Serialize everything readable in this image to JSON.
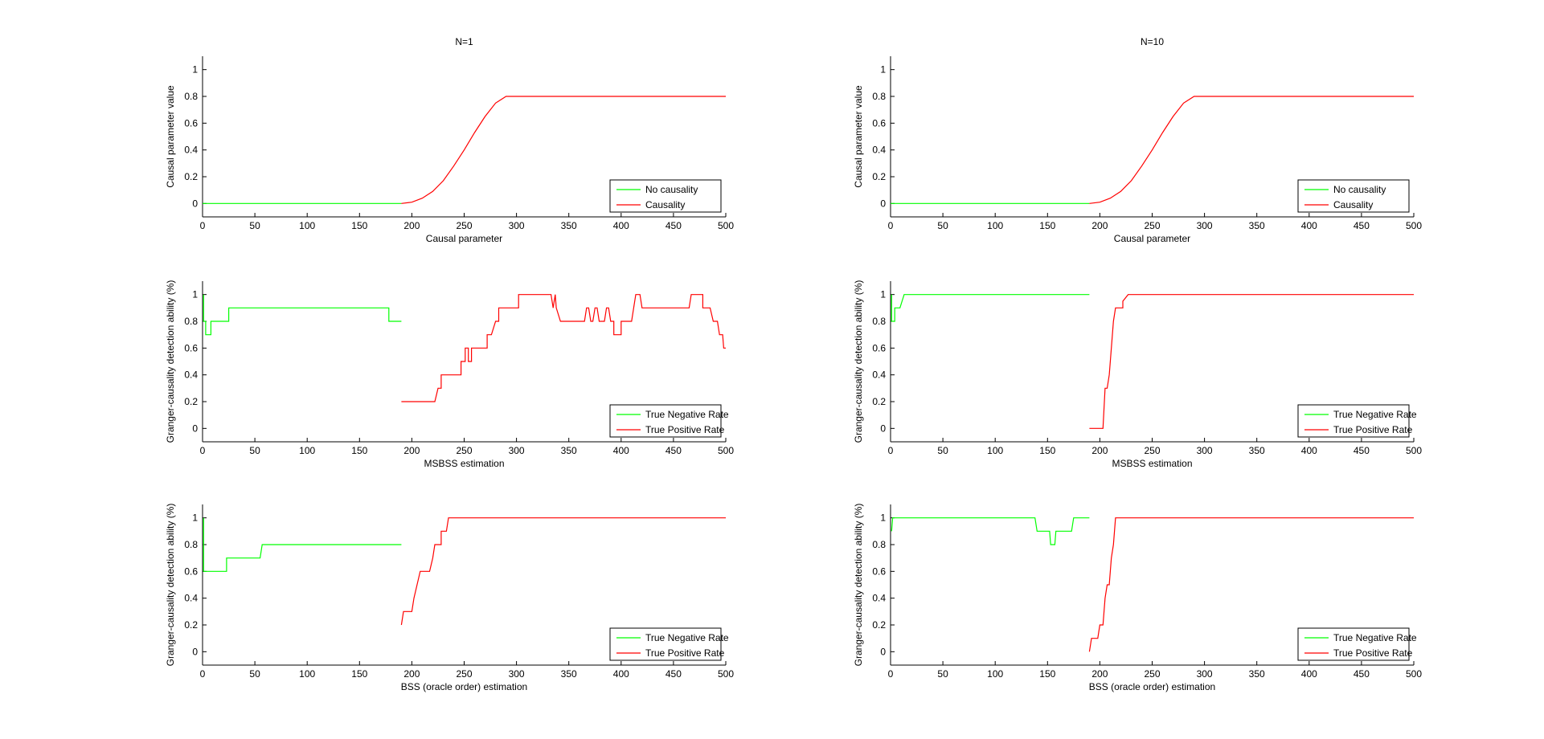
{
  "figure": {
    "colors": {
      "green": "#00ff00",
      "red": "#ff0000",
      "axis": "#000000"
    }
  },
  "chart_data": [
    {
      "type": "line",
      "title": "N=1",
      "xlabel": "Causal parameter",
      "ylabel": "Causal parameter value",
      "xlim": [
        0,
        500
      ],
      "ylim": [
        -0.1,
        1.1
      ],
      "xticks": [
        0,
        50,
        100,
        150,
        200,
        250,
        300,
        350,
        400,
        450,
        500
      ],
      "yticks": [
        0,
        0.2,
        0.4,
        0.6,
        0.8,
        1
      ],
      "legend": "bottom-right",
      "series": [
        {
          "name": "No causality",
          "color": "#00ff00",
          "points": [
            [
              0,
              0
            ],
            [
              190,
              0
            ]
          ]
        },
        {
          "name": "Causality",
          "color": "#ff0000",
          "points": [
            [
              190,
              0
            ],
            [
              200,
              0.01
            ],
            [
              210,
              0.04
            ],
            [
              220,
              0.09
            ],
            [
              230,
              0.17
            ],
            [
              240,
              0.28
            ],
            [
              250,
              0.4
            ],
            [
              260,
              0.53
            ],
            [
              270,
              0.65
            ],
            [
              280,
              0.75
            ],
            [
              290,
              0.8
            ],
            [
              500,
              0.8
            ]
          ]
        }
      ]
    },
    {
      "type": "line",
      "title": "N=10",
      "xlabel": "Causal parameter",
      "ylabel": "Causal parameter value",
      "xlim": [
        0,
        500
      ],
      "ylim": [
        -0.1,
        1.1
      ],
      "xticks": [
        0,
        50,
        100,
        150,
        200,
        250,
        300,
        350,
        400,
        450,
        500
      ],
      "yticks": [
        0,
        0.2,
        0.4,
        0.6,
        0.8,
        1
      ],
      "legend": "bottom-right",
      "series": [
        {
          "name": "No causality",
          "color": "#00ff00",
          "points": [
            [
              0,
              0
            ],
            [
              190,
              0
            ]
          ]
        },
        {
          "name": "Causality",
          "color": "#ff0000",
          "points": [
            [
              190,
              0
            ],
            [
              200,
              0.01
            ],
            [
              210,
              0.04
            ],
            [
              220,
              0.09
            ],
            [
              230,
              0.17
            ],
            [
              240,
              0.28
            ],
            [
              250,
              0.4
            ],
            [
              260,
              0.53
            ],
            [
              270,
              0.65
            ],
            [
              280,
              0.75
            ],
            [
              290,
              0.8
            ],
            [
              500,
              0.8
            ]
          ]
        }
      ]
    },
    {
      "type": "line",
      "title": "",
      "xlabel": "MSBSS estimation",
      "ylabel": "Granger-causality detection ability (%)",
      "xlim": [
        0,
        500
      ],
      "ylim": [
        -0.1,
        1.1
      ],
      "xticks": [
        0,
        50,
        100,
        150,
        200,
        250,
        300,
        350,
        400,
        450,
        500
      ],
      "yticks": [
        0,
        0.2,
        0.4,
        0.6,
        0.8,
        1
      ],
      "legend": "bottom-right",
      "series": [
        {
          "name": "True Negative Rate",
          "color": "#00ff00",
          "points": [
            [
              1,
              1
            ],
            [
              1,
              0.8
            ],
            [
              3,
              0.8
            ],
            [
              3,
              0.7
            ],
            [
              8,
              0.7
            ],
            [
              8,
              0.8
            ],
            [
              25,
              0.8
            ],
            [
              25,
              0.9
            ],
            [
              178,
              0.9
            ],
            [
              178,
              0.8
            ],
            [
              190,
              0.8
            ]
          ]
        },
        {
          "name": "True Positive Rate",
          "color": "#ff0000",
          "points": [
            [
              190,
              0.2
            ],
            [
              222,
              0.2
            ],
            [
              225,
              0.3
            ],
            [
              228,
              0.3
            ],
            [
              228,
              0.4
            ],
            [
              247,
              0.4
            ],
            [
              247,
              0.5
            ],
            [
              251,
              0.5
            ],
            [
              251,
              0.6
            ],
            [
              254,
              0.6
            ],
            [
              254,
              0.5
            ],
            [
              257,
              0.5
            ],
            [
              257,
              0.6
            ],
            [
              272,
              0.6
            ],
            [
              272,
              0.7
            ],
            [
              276,
              0.7
            ],
            [
              280,
              0.8
            ],
            [
              283,
              0.8
            ],
            [
              283,
              0.9
            ],
            [
              302,
              0.9
            ],
            [
              302,
              1
            ],
            [
              333,
              1
            ],
            [
              335,
              0.9
            ],
            [
              337,
              1
            ],
            [
              338,
              0.9
            ],
            [
              342,
              0.8
            ],
            [
              365,
              0.8
            ],
            [
              367,
              0.9
            ],
            [
              369,
              0.9
            ],
            [
              371,
              0.8
            ],
            [
              373,
              0.8
            ],
            [
              375,
              0.9
            ],
            [
              377,
              0.9
            ],
            [
              379,
              0.8
            ],
            [
              384,
              0.8
            ],
            [
              386,
              0.9
            ],
            [
              388,
              0.9
            ],
            [
              390,
              0.8
            ],
            [
              393,
              0.8
            ],
            [
              393,
              0.7
            ],
            [
              400,
              0.7
            ],
            [
              400,
              0.8
            ],
            [
              410,
              0.8
            ],
            [
              412,
              0.9
            ],
            [
              414,
              1
            ],
            [
              418,
              1
            ],
            [
              420,
              0.9
            ],
            [
              465,
              0.9
            ],
            [
              467,
              1
            ],
            [
              478,
              1
            ],
            [
              478,
              0.9
            ],
            [
              485,
              0.9
            ],
            [
              488,
              0.8
            ],
            [
              492,
              0.8
            ],
            [
              494,
              0.7
            ],
            [
              497,
              0.7
            ],
            [
              498,
              0.6
            ],
            [
              500,
              0.6
            ]
          ]
        }
      ]
    },
    {
      "type": "line",
      "title": "",
      "xlabel": "MSBSS estimation",
      "ylabel": "Granger-causality detection ability (%)",
      "xlim": [
        0,
        500
      ],
      "ylim": [
        -0.1,
        1.1
      ],
      "xticks": [
        0,
        50,
        100,
        150,
        200,
        250,
        300,
        350,
        400,
        450,
        500
      ],
      "yticks": [
        0,
        0.2,
        0.4,
        0.6,
        0.8,
        1
      ],
      "legend": "bottom-right",
      "series": [
        {
          "name": "True Negative Rate",
          "color": "#00ff00",
          "points": [
            [
              1,
              1
            ],
            [
              1,
              0.8
            ],
            [
              4,
              0.8
            ],
            [
              4,
              0.9
            ],
            [
              9,
              0.9
            ],
            [
              13,
              1
            ],
            [
              190,
              1
            ]
          ]
        },
        {
          "name": "True Positive Rate",
          "color": "#ff0000",
          "points": [
            [
              190,
              0
            ],
            [
              203,
              0
            ],
            [
              205,
              0.3
            ],
            [
              207,
              0.3
            ],
            [
              209,
              0.4
            ],
            [
              211,
              0.6
            ],
            [
              213,
              0.8
            ],
            [
              215,
              0.9
            ],
            [
              222,
              0.9
            ],
            [
              222,
              0.95
            ],
            [
              227,
              1
            ],
            [
              500,
              1
            ]
          ]
        }
      ]
    },
    {
      "type": "line",
      "title": "",
      "xlabel": "BSS (oracle order) estimation",
      "ylabel": "Granger-causality detection ability (%)",
      "xlim": [
        0,
        500
      ],
      "ylim": [
        -0.1,
        1.1
      ],
      "xticks": [
        0,
        50,
        100,
        150,
        200,
        250,
        300,
        350,
        400,
        450,
        500
      ],
      "yticks": [
        0,
        0.2,
        0.4,
        0.6,
        0.8,
        1
      ],
      "legend": "bottom-right",
      "series": [
        {
          "name": "True Negative Rate",
          "color": "#00ff00",
          "points": [
            [
              1,
              1
            ],
            [
              1,
              0.6
            ],
            [
              23,
              0.6
            ],
            [
              23,
              0.7
            ],
            [
              55,
              0.7
            ],
            [
              57,
              0.8
            ],
            [
              190,
              0.8
            ]
          ]
        },
        {
          "name": "True Positive Rate",
          "color": "#ff0000",
          "points": [
            [
              190,
              0.2
            ],
            [
              192,
              0.3
            ],
            [
              200,
              0.3
            ],
            [
              202,
              0.4
            ],
            [
              205,
              0.5
            ],
            [
              208,
              0.6
            ],
            [
              217,
              0.6
            ],
            [
              220,
              0.7
            ],
            [
              222,
              0.8
            ],
            [
              228,
              0.8
            ],
            [
              228,
              0.9
            ],
            [
              233,
              0.9
            ],
            [
              235,
              1
            ],
            [
              500,
              1
            ]
          ]
        }
      ]
    },
    {
      "type": "line",
      "title": "",
      "xlabel": "BSS (oracle order) estimation",
      "ylabel": "Granger-causality detection ability (%)",
      "xlim": [
        0,
        500
      ],
      "ylim": [
        -0.1,
        1.1
      ],
      "xticks": [
        0,
        50,
        100,
        150,
        200,
        250,
        300,
        350,
        400,
        450,
        500
      ],
      "yticks": [
        0,
        0.2,
        0.4,
        0.6,
        0.8,
        1
      ],
      "legend": "bottom-right",
      "series": [
        {
          "name": "True Negative Rate",
          "color": "#00ff00",
          "points": [
            [
              1,
              0.9
            ],
            [
              2,
              1
            ],
            [
              138,
              1
            ],
            [
              140,
              0.9
            ],
            [
              152,
              0.9
            ],
            [
              153,
              0.8
            ],
            [
              157,
              0.8
            ],
            [
              158,
              0.9
            ],
            [
              173,
              0.9
            ],
            [
              175,
              1
            ],
            [
              190,
              1
            ]
          ]
        },
        {
          "name": "True Positive Rate",
          "color": "#ff0000",
          "points": [
            [
              190,
              0
            ],
            [
              192,
              0.1
            ],
            [
              198,
              0.1
            ],
            [
              200,
              0.2
            ],
            [
              203,
              0.2
            ],
            [
              205,
              0.4
            ],
            [
              207,
              0.5
            ],
            [
              209,
              0.5
            ],
            [
              211,
              0.7
            ],
            [
              213,
              0.8
            ],
            [
              215,
              1
            ],
            [
              500,
              1
            ]
          ]
        }
      ]
    }
  ]
}
